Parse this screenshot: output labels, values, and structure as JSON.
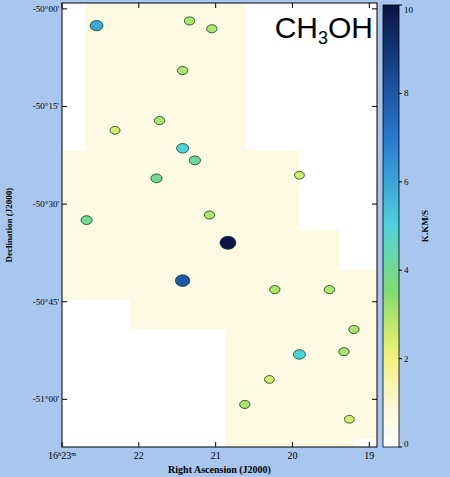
{
  "chart_data": {
    "type": "heatmap",
    "title": "CH3OH",
    "x_label": "Right Ascension (J2000)",
    "y_label": "Declination (J2000)",
    "xlim": [
      23,
      18.9
    ],
    "ylim": [
      -51.122,
      -49.985
    ],
    "xticks": [
      {
        "value": 23,
        "label": "16ʰ23ᵐ"
      },
      {
        "value": 22,
        "label": "22"
      },
      {
        "value": 21,
        "label": "21"
      },
      {
        "value": 20,
        "label": "20"
      },
      {
        "value": 19,
        "label": "19"
      }
    ],
    "yticks": [
      {
        "value": -50,
        "label": "-50°00'"
      },
      {
        "value": -50.25,
        "label": "-50°15'"
      },
      {
        "value": -50.5,
        "label": "-50°30'"
      },
      {
        "value": -50.75,
        "label": "-50°45'"
      },
      {
        "value": -51,
        "label": "-51°00'"
      }
    ],
    "grid": false,
    "regions": [
      {
        "ra": [
          22.7,
          20.62
        ],
        "dec": [
          -50.388,
          -49.985
        ],
        "value": 0.6
      },
      {
        "ra": [
          23.0,
          19.91
        ],
        "dec": [
          -50.745,
          -50.362
        ],
        "value": 0.6
      },
      {
        "ra": [
          22.12,
          19.39
        ],
        "dec": [
          -50.821,
          -50.566
        ],
        "value": 0.6
      },
      {
        "ra": [
          20.88,
          19.19
        ],
        "dec": [
          -51.122,
          -50.821
        ],
        "value": 0.6
      },
      {
        "ra": [
          19.91,
          18.91
        ],
        "dec": [
          -51.102,
          -50.668
        ],
        "value": 0.6
      }
    ],
    "cells": [
      {
        "ra": 21.73,
        "dec": -50.286,
        "value": 3
      },
      {
        "ra": 22.31,
        "dec": -50.311,
        "value": 2.5
      },
      {
        "ra": 19.91,
        "dec": -50.426,
        "value": 2.5
      },
      {
        "ra": 20.3,
        "dec": -50.949,
        "value": 2.5
      },
      {
        "ra": 19.26,
        "dec": -51.051,
        "value": 2.5
      },
      {
        "ra": 21.34,
        "dec": -50.031,
        "value": 3
      },
      {
        "ra": 21.05,
        "dec": -50.051,
        "value": 3
      },
      {
        "ra": 21.43,
        "dec": -50.158,
        "value": 3
      },
      {
        "ra": 21.08,
        "dec": -50.528,
        "value": 3
      },
      {
        "ra": 19.33,
        "dec": -50.878,
        "value": 3
      },
      {
        "ra": 20.62,
        "dec": -51.013,
        "value": 3
      },
      {
        "ra": 19.52,
        "dec": -50.719,
        "value": 3
      },
      {
        "ra": 19.2,
        "dec": -50.821,
        "value": 3
      },
      {
        "ra": 20.23,
        "dec": -50.719,
        "value": 3
      },
      {
        "ra": 21.27,
        "dec": -50.388,
        "value": 4
      },
      {
        "ra": 21.77,
        "dec": -50.434,
        "value": 4
      },
      {
        "ra": 22.68,
        "dec": -50.541,
        "value": 4
      },
      {
        "ra": 21.43,
        "dec": -50.357,
        "value": 5
      },
      {
        "ra": 19.91,
        "dec": -50.885,
        "value": 5
      },
      {
        "ra": 22.55,
        "dec": -50.043,
        "value": 6
      },
      {
        "ra": 21.43,
        "dec": -50.696,
        "value": 8
      },
      {
        "ra": 20.84,
        "dec": -50.599,
        "value": 10
      }
    ],
    "colorbar": {
      "range": [
        0,
        10
      ],
      "ticks": [
        0,
        2,
        4,
        6,
        8,
        10
      ],
      "label": "K.KM/S"
    }
  }
}
